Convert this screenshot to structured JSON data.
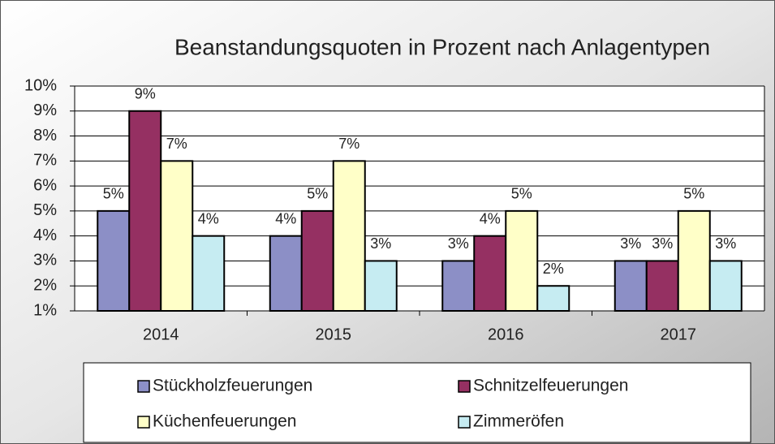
{
  "chart_data": {
    "type": "bar",
    "title": "Beanstandungsquoten in Prozent nach Anlagentypen",
    "categories": [
      "2014",
      "2015",
      "2016",
      "2017"
    ],
    "series": [
      {
        "name": "Stückholzfeuerungen",
        "color": "#8c8fc6",
        "values": [
          5,
          4,
          3,
          3
        ],
        "value_labels": [
          "5%",
          "4%",
          "3%",
          "3%"
        ]
      },
      {
        "name": "Schnitzelfeuerungen",
        "color": "#953062",
        "values": [
          9,
          5,
          4,
          3
        ],
        "value_labels": [
          "9%",
          "5%",
          "4%",
          "3%"
        ]
      },
      {
        "name": "Küchenfeuerungen",
        "color": "#ffffc8",
        "values": [
          7,
          7,
          5,
          5
        ],
        "value_labels": [
          "7%",
          "7%",
          "5%",
          "5%"
        ]
      },
      {
        "name": "Zimmeröfen",
        "color": "#c6ecf2",
        "values": [
          4,
          3,
          2,
          3
        ],
        "value_labels": [
          "4%",
          "3%",
          "2%",
          "3%"
        ]
      }
    ],
    "ylim": [
      1,
      10
    ],
    "yticks": [
      {
        "value": 1,
        "label": "1%"
      },
      {
        "value": 2,
        "label": "2%"
      },
      {
        "value": 3,
        "label": "3%"
      },
      {
        "value": 4,
        "label": "4%"
      },
      {
        "value": 5,
        "label": "5%"
      },
      {
        "value": 6,
        "label": "6%"
      },
      {
        "value": 7,
        "label": "7%"
      },
      {
        "value": 8,
        "label": "8%"
      },
      {
        "value": 9,
        "label": "9%"
      },
      {
        "value": 10,
        "label": "10%"
      }
    ],
    "grid": true,
    "legend": "bottom"
  }
}
